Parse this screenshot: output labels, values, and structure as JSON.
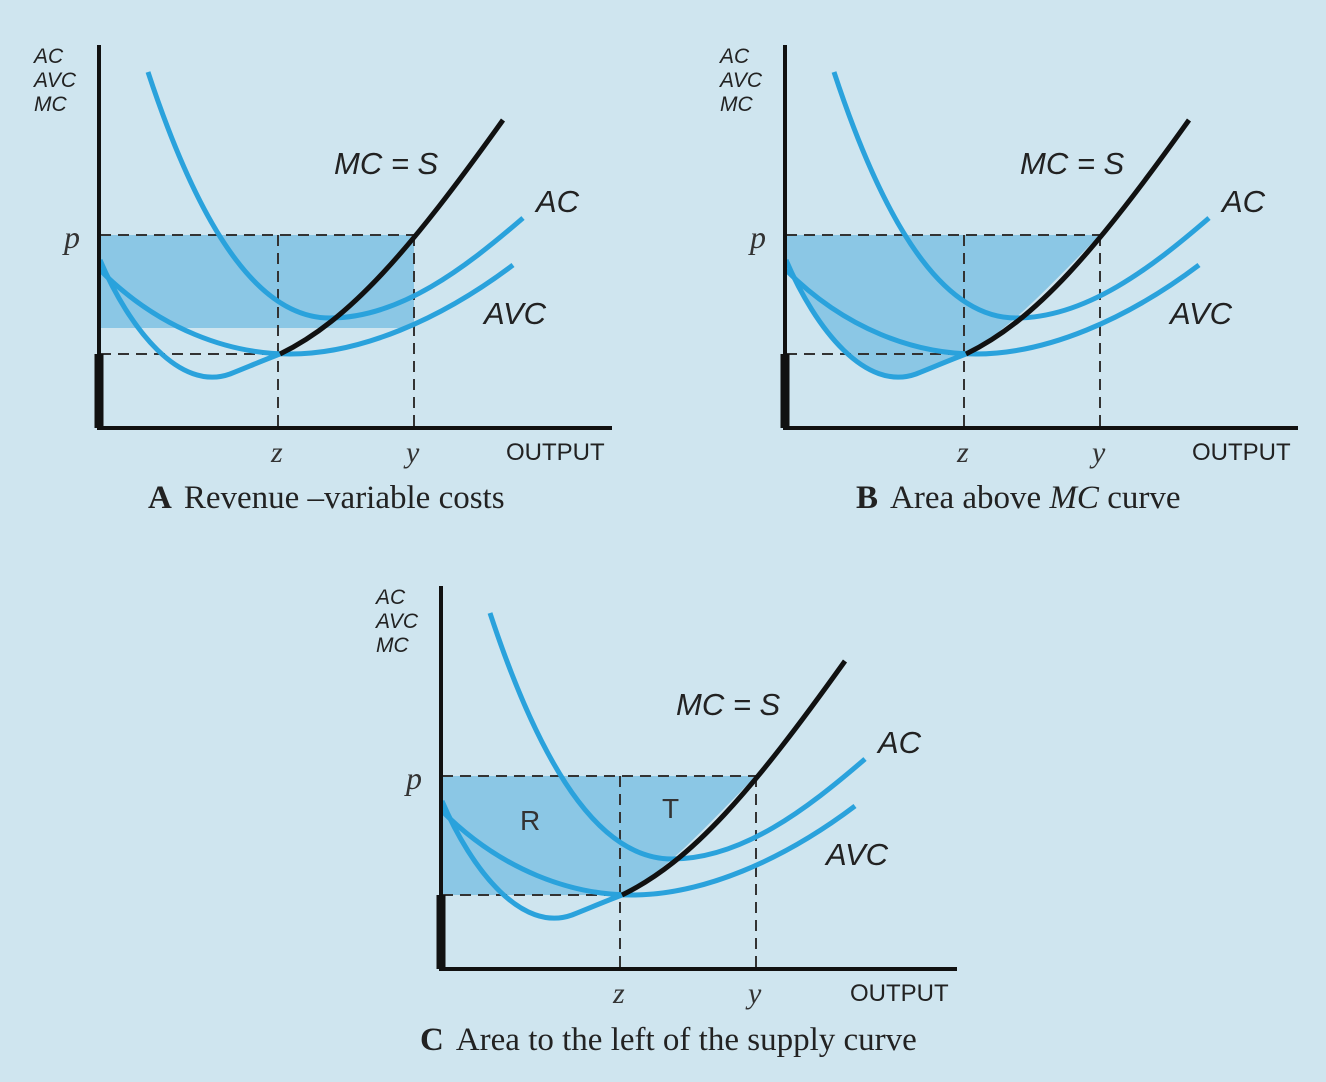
{
  "panels": [
    {
      "id": "A",
      "y_axis_labels": [
        "AC",
        "AVC",
        "MC"
      ],
      "price_label": "p",
      "x_ticks": [
        "z",
        "y"
      ],
      "x_axis_label": "OUTPUT",
      "mc_label": "MC = S",
      "ac_label": "AC",
      "avc_label": "AVC",
      "caption_letter": "A",
      "caption_text": "Revenue –variable costs"
    },
    {
      "id": "B",
      "y_axis_labels": [
        "AC",
        "AVC",
        "MC"
      ],
      "price_label": "p",
      "x_ticks": [
        "z",
        "y"
      ],
      "x_axis_label": "OUTPUT",
      "mc_label": "MC = S",
      "ac_label": "AC",
      "avc_label": "AVC",
      "caption_letter": "B",
      "caption_pre": "Area above ",
      "caption_em": "MC",
      "caption_post": " curve"
    },
    {
      "id": "C",
      "y_axis_labels": [
        "AC",
        "AVC",
        "MC"
      ],
      "price_label": "p",
      "x_ticks": [
        "z",
        "y"
      ],
      "x_axis_label": "OUTPUT",
      "mc_label": "MC = S",
      "ac_label": "AC",
      "avc_label": "AVC",
      "region_labels": [
        "R",
        "T"
      ],
      "caption_letter": "C",
      "caption_text": "Area to the left of the supply curve"
    }
  ],
  "colors": {
    "background": "#cfe5ef",
    "curve_blue": "#2aa2dc",
    "supply_black": "#111111",
    "shade_blue": "#5db3de"
  }
}
